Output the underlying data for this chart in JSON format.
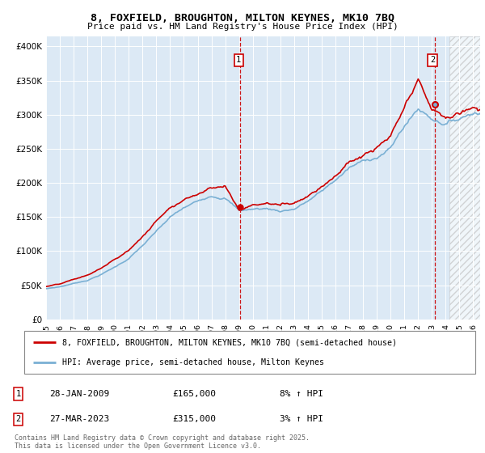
{
  "title": "8, FOXFIELD, BROUGHTON, MILTON KEYNES, MK10 7BQ",
  "subtitle": "Price paid vs. HM Land Registry's House Price Index (HPI)",
  "ylabel_ticks": [
    "£0",
    "£50K",
    "£100K",
    "£150K",
    "£200K",
    "£250K",
    "£300K",
    "£350K",
    "£400K"
  ],
  "ytick_vals": [
    0,
    50000,
    100000,
    150000,
    200000,
    250000,
    300000,
    350000,
    400000
  ],
  "ylim": [
    0,
    415000
  ],
  "xlim_start": 1995.0,
  "xlim_end": 2026.5,
  "hatch_start": 2024.3,
  "plot_bg": "#dce9f5",
  "marker1_x": 2009.08,
  "marker1_y": 165000,
  "marker1_label": "1",
  "marker1_date": "28-JAN-2009",
  "marker1_price": "£165,000",
  "marker1_hpi": "8% ↑ HPI",
  "marker2_x": 2023.24,
  "marker2_y": 315000,
  "marker2_label": "2",
  "marker2_date": "27-MAR-2023",
  "marker2_price": "£315,000",
  "marker2_hpi": "3% ↑ HPI",
  "line_color_red": "#cc0000",
  "line_color_blue": "#7ab0d4",
  "legend_label_red": "8, FOXFIELD, BROUGHTON, MILTON KEYNES, MK10 7BQ (semi-detached house)",
  "legend_label_blue": "HPI: Average price, semi-detached house, Milton Keynes",
  "footer": "Contains HM Land Registry data © Crown copyright and database right 2025.\nThis data is licensed under the Open Government Licence v3.0.",
  "xtick_years": [
    1995,
    1996,
    1997,
    1998,
    1999,
    2000,
    2001,
    2002,
    2003,
    2004,
    2005,
    2006,
    2007,
    2008,
    2009,
    2010,
    2011,
    2012,
    2013,
    2014,
    2015,
    2016,
    2017,
    2018,
    2019,
    2020,
    2021,
    2022,
    2023,
    2024,
    2025,
    2026
  ]
}
